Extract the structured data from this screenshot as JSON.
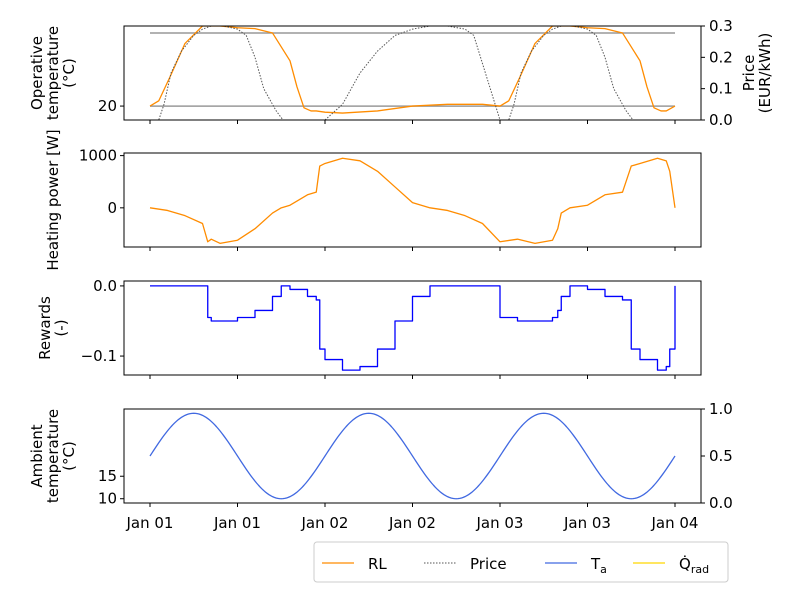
{
  "chart_data": {
    "type": "line",
    "x_range": [
      "Jan 01",
      "Jan 04"
    ],
    "x_tick_labels": [
      "Jan 01",
      "Jan 01",
      "Jan 02",
      "Jan 02",
      "Jan 03",
      "Jan 03",
      "Jan 04"
    ],
    "panels": [
      {
        "id": "operative",
        "ylabel_lines": [
          "Operative",
          "temperature",
          "(°C)"
        ],
        "y_ticks": [
          20
        ],
        "ylim": [
          19.2,
          24.6
        ],
        "y2label_lines": [
          "Price",
          "(EUR/kWh)"
        ],
        "y2_ticks": [
          "0.0",
          "0.1",
          "0.2",
          "0.3"
        ],
        "y2lim": [
          0,
          0.3
        ],
        "reference_lines": [
          {
            "name": "lower-bound",
            "y": 20,
            "color": "#999999"
          },
          {
            "name": "upper-bound",
            "y": 24.2,
            "color": "#999999"
          }
        ],
        "series": [
          {
            "name": "RL",
            "color": "#ff8c00",
            "axis": "left",
            "x": [
              0,
              0.05,
              0.12,
              0.2,
              0.3,
              0.4,
              0.5,
              0.6,
              0.7,
              0.8,
              0.84,
              0.88,
              0.92,
              0.95,
              1.0,
              1.1,
              1.3,
              1.5,
              1.7,
              1.9,
              2.0,
              2.05,
              2.12,
              2.2,
              2.3,
              2.4,
              2.5,
              2.6,
              2.7,
              2.8,
              2.84,
              2.88,
              2.92,
              2.95,
              3.0
            ],
            "y": [
              20,
              20.3,
              21.8,
              23.6,
              24.6,
              24.6,
              24.5,
              24.45,
              24.2,
              22.6,
              21.1,
              19.9,
              19.72,
              19.72,
              19.65,
              19.6,
              19.72,
              20.0,
              20.1,
              20.1,
              20,
              20.3,
              21.8,
              23.6,
              24.6,
              24.6,
              24.5,
              24.45,
              24.2,
              22.6,
              21.1,
              19.9,
              19.72,
              19.72,
              20
            ]
          },
          {
            "name": "Price",
            "color": "#555555",
            "axis": "right",
            "dash": true,
            "x": [
              0,
              0.05,
              0.08,
              0.12,
              0.18,
              0.25,
              0.3,
              0.35,
              0.42,
              0.5,
              0.55,
              0.6,
              0.65,
              0.68,
              0.72,
              0.76,
              0.8,
              0.85,
              1.0,
              1.1,
              1.2,
              1.3,
              1.4,
              1.5,
              1.6,
              1.7,
              1.8,
              1.85,
              2.0,
              2.05,
              2.08,
              2.12,
              2.18,
              2.25,
              2.3,
              2.35,
              2.42,
              2.5,
              2.55,
              2.6,
              2.65,
              2.68,
              2.72,
              2.76,
              2.8,
              2.85,
              3.0
            ],
            "y": [
              0,
              0,
              0.05,
              0.15,
              0.22,
              0.27,
              0.29,
              0.3,
              0.3,
              0.29,
              0.27,
              0.2,
              0.1,
              0.07,
              0.03,
              0,
              0,
              0,
              0,
              0.05,
              0.15,
              0.22,
              0.27,
              0.29,
              0.3,
              0.3,
              0.29,
              0.27,
              0,
              0,
              0.05,
              0.15,
              0.22,
              0.27,
              0.29,
              0.3,
              0.3,
              0.29,
              0.27,
              0.2,
              0.1,
              0.07,
              0.03,
              0,
              0,
              0,
              0
            ]
          }
        ]
      },
      {
        "id": "heating",
        "ylabel_lines": [
          "Heating power [W]"
        ],
        "y_ticks": [
          0,
          1000
        ],
        "ylim": [
          -750,
          1050
        ],
        "series": [
          {
            "name": "RL",
            "color": "#ff8c00",
            "axis": "left",
            "x": [
              0,
              0.1,
              0.2,
              0.3,
              0.33,
              0.35,
              0.4,
              0.5,
              0.6,
              0.7,
              0.75,
              0.8,
              0.9,
              0.95,
              0.97,
              1.0,
              1.1,
              1.2,
              1.3,
              1.4,
              1.5,
              1.6,
              1.7,
              1.8,
              1.9,
              2.0,
              2.1,
              2.2,
              2.3,
              2.33,
              2.35,
              2.4,
              2.5,
              2.6,
              2.7,
              2.75,
              2.8,
              2.9,
              2.95,
              2.97,
              3.0
            ],
            "y": [
              0,
              -50,
              -150,
              -300,
              -650,
              -600,
              -680,
              -620,
              -400,
              -100,
              0,
              50,
              250,
              300,
              800,
              850,
              950,
              900,
              700,
              400,
              100,
              0,
              -50,
              -150,
              -300,
              -650,
              -600,
              -680,
              -620,
              -400,
              -100,
              0,
              50,
              250,
              300,
              800,
              850,
              950,
              900,
              700,
              0
            ]
          }
        ]
      },
      {
        "id": "rewards",
        "ylabel_lines": [
          "Rewards",
          "(-)"
        ],
        "y_ticks": [
          "-0.1",
          "0.0"
        ],
        "ylim": [
          -0.127,
          0.007
        ],
        "series": [
          {
            "name": "Rewards",
            "color": "#0000ff",
            "axis": "left",
            "step": true,
            "x": [
              0,
              0.1,
              0.2,
              0.3,
              0.33,
              0.35,
              0.4,
              0.5,
              0.6,
              0.7,
              0.75,
              0.8,
              0.9,
              0.95,
              0.97,
              1.0,
              1.1,
              1.2,
              1.3,
              1.4,
              1.5,
              1.6,
              1.7,
              1.8,
              1.9,
              2.0,
              2.1,
              2.2,
              2.3,
              2.33,
              2.35,
              2.4,
              2.5,
              2.6,
              2.7,
              2.75,
              2.8,
              2.9,
              2.95,
              2.97,
              3.0
            ],
            "y": [
              0,
              0,
              0,
              0,
              -0.045,
              -0.05,
              -0.05,
              -0.045,
              -0.035,
              -0.015,
              0,
              -0.005,
              -0.015,
              -0.02,
              -0.09,
              -0.105,
              -0.12,
              -0.115,
              -0.09,
              -0.05,
              -0.015,
              0,
              0,
              0,
              0,
              -0.045,
              -0.05,
              -0.05,
              -0.045,
              -0.035,
              -0.015,
              0,
              -0.005,
              -0.015,
              -0.02,
              -0.09,
              -0.105,
              -0.12,
              -0.115,
              -0.09,
              0
            ]
          }
        ]
      },
      {
        "id": "ambient",
        "ylabel_lines": [
          "Ambient",
          "temperature",
          "(°C)"
        ],
        "y_ticks": [
          10,
          15
        ],
        "ylim": [
          9.05,
          29.95
        ],
        "y2_ticks": [
          "0.0",
          "0.5",
          "1.0"
        ],
        "y2lim": [
          0,
          1
        ],
        "series": [
          {
            "name": "T_a",
            "color": "#4169e1",
            "axis": "left",
            "func": "ambient"
          }
        ]
      }
    ],
    "legend": {
      "placement": "bottom-right",
      "entries": [
        {
          "label": "RL",
          "color": "#ff8c00",
          "style": "solid"
        },
        {
          "label": "Price",
          "color": "#555555",
          "style": "dotted"
        },
        {
          "label": "T",
          "sub": "a",
          "color": "#4169e1",
          "style": "solid"
        },
        {
          "label": "Q̇",
          "sub": "rad",
          "color": "#ffd700",
          "style": "solid"
        }
      ]
    }
  }
}
